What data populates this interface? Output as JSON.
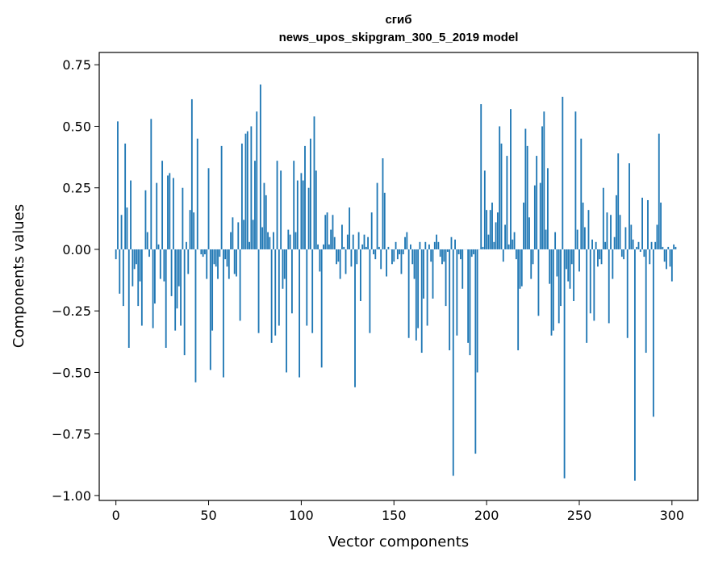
{
  "chart_data": {
    "type": "bar",
    "title_line1": "сгиб",
    "title_line2": "news_upos_skipgram_300_5_2019 model",
    "xlabel": "Vector components",
    "ylabel": "Components values",
    "xlim": [
      -9,
      314
    ],
    "ylim": [
      -1.02,
      0.8
    ],
    "xticks": [
      0,
      50,
      100,
      150,
      200,
      250,
      300
    ],
    "yticks": [
      0.75,
      0.5,
      0.25,
      0.0,
      -0.25,
      -0.5,
      -0.75,
      -1.0
    ],
    "xtick_labels": [
      "0",
      "50",
      "100",
      "150",
      "200",
      "250",
      "300"
    ],
    "ytick_labels": [
      "0.75",
      "0.50",
      "0.25",
      "0.00",
      "−0.25",
      "−0.50",
      "−0.75",
      "−1.00"
    ],
    "bar_color": "#1f77b4",
    "values": [
      -0.04,
      0.52,
      -0.18,
      0.14,
      -0.23,
      0.43,
      0.17,
      -0.4,
      0.28,
      -0.15,
      -0.08,
      -0.06,
      -0.23,
      -0.13,
      -0.31,
      0.0,
      0.24,
      0.07,
      -0.03,
      0.53,
      -0.32,
      -0.22,
      0.27,
      0.02,
      -0.12,
      0.36,
      -0.13,
      -0.4,
      0.3,
      0.31,
      -0.19,
      0.29,
      -0.33,
      -0.24,
      -0.15,
      -0.31,
      0.25,
      -0.43,
      0.03,
      -0.1,
      0.16,
      0.61,
      0.15,
      -0.54,
      0.45,
      0.0,
      -0.02,
      -0.03,
      -0.02,
      -0.12,
      0.33,
      -0.49,
      -0.33,
      -0.06,
      -0.07,
      -0.12,
      -0.03,
      0.42,
      -0.52,
      -0.04,
      -0.07,
      -0.12,
      0.07,
      0.13,
      -0.1,
      -0.11,
      0.11,
      -0.29,
      0.43,
      0.12,
      0.47,
      0.48,
      0.03,
      0.5,
      0.12,
      0.36,
      0.56,
      -0.34,
      0.67,
      0.09,
      0.27,
      0.22,
      0.07,
      0.05,
      -0.38,
      0.07,
      -0.35,
      0.36,
      -0.31,
      0.32,
      -0.16,
      -0.12,
      -0.5,
      0.08,
      0.06,
      -0.26,
      0.36,
      0.07,
      0.28,
      -0.52,
      0.31,
      0.28,
      0.42,
      -0.31,
      0.25,
      0.45,
      -0.34,
      0.54,
      0.32,
      0.02,
      -0.09,
      -0.48,
      0.02,
      0.14,
      0.15,
      0.02,
      0.08,
      0.14,
      0.05,
      -0.06,
      -0.05,
      -0.12,
      0.1,
      0.01,
      -0.1,
      0.06,
      0.17,
      -0.07,
      0.06,
      -0.56,
      -0.06,
      0.07,
      -0.21,
      0.02,
      0.06,
      0.01,
      0.05,
      -0.34,
      0.15,
      -0.02,
      -0.04,
      0.27,
      0.01,
      -0.08,
      0.37,
      0.23,
      -0.11,
      0.01,
      0.0,
      -0.06,
      -0.05,
      0.03,
      -0.04,
      -0.02,
      -0.1,
      -0.02,
      0.05,
      0.07,
      -0.36,
      0.02,
      -0.06,
      -0.12,
      -0.37,
      -0.32,
      0.03,
      -0.42,
      -0.2,
      0.03,
      -0.31,
      0.02,
      -0.05,
      -0.2,
      0.03,
      0.06,
      0.03,
      -0.03,
      -0.06,
      -0.05,
      -0.23,
      -0.01,
      -0.41,
      0.05,
      -0.92,
      0.04,
      -0.35,
      -0.02,
      -0.04,
      -0.16,
      0.0,
      0.0,
      -0.38,
      -0.43,
      -0.03,
      -0.02,
      -0.83,
      -0.5,
      0.0,
      0.59,
      0.01,
      0.32,
      0.16,
      0.06,
      0.16,
      0.19,
      0.03,
      0.11,
      0.15,
      0.5,
      0.43,
      -0.05,
      0.1,
      0.38,
      0.02,
      0.57,
      0.04,
      0.07,
      -0.04,
      -0.41,
      -0.16,
      -0.15,
      0.19,
      0.49,
      0.42,
      0.13,
      -0.12,
      -0.06,
      0.26,
      0.38,
      -0.27,
      0.27,
      0.5,
      0.56,
      0.08,
      0.33,
      -0.14,
      -0.35,
      -0.33,
      0.07,
      -0.11,
      -0.3,
      -0.23,
      0.62,
      -0.93,
      -0.08,
      -0.13,
      -0.16,
      -0.06,
      -0.21,
      0.56,
      0.08,
      -0.09,
      0.45,
      0.19,
      0.09,
      -0.38,
      0.16,
      -0.26,
      0.04,
      -0.29,
      0.03,
      -0.07,
      -0.04,
      -0.06,
      0.25,
      0.03,
      0.15,
      -0.3,
      0.14,
      -0.12,
      0.05,
      0.22,
      0.39,
      0.14,
      -0.03,
      -0.04,
      0.09,
      -0.36,
      0.35,
      0.1,
      0.04,
      -0.94,
      0.01,
      0.03,
      -0.01,
      0.21,
      -0.03,
      -0.42,
      0.2,
      -0.06,
      0.03,
      -0.68,
      0.03,
      0.1,
      0.47,
      0.19,
      0.01,
      -0.05,
      -0.08,
      0.01,
      -0.07,
      -0.13,
      0.02,
      0.01
    ]
  }
}
